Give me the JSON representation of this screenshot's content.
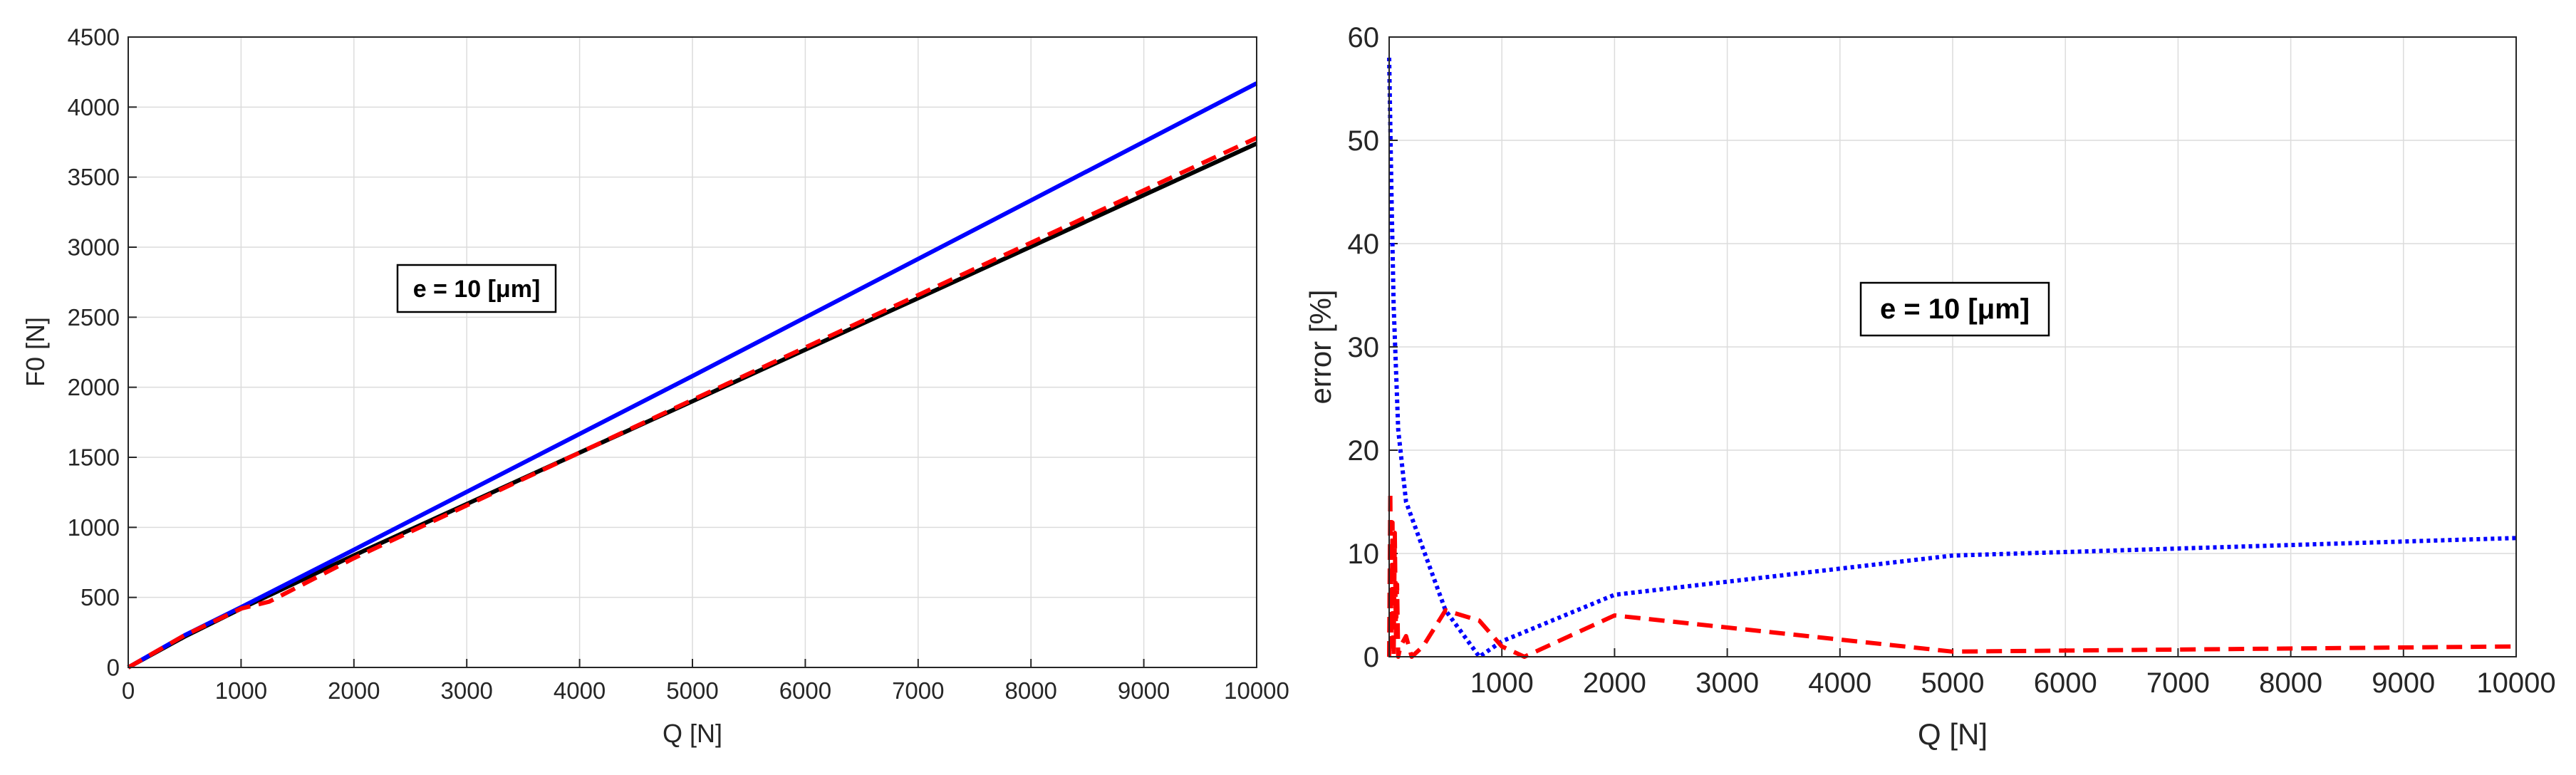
{
  "chart_data": [
    {
      "type": "line",
      "title": "",
      "xlabel": "Q [N]",
      "ylabel": "F0 [N]",
      "xlim": [
        0,
        10000
      ],
      "ylim": [
        0,
        4500
      ],
      "xticks": [
        0,
        1000,
        2000,
        3000,
        4000,
        5000,
        6000,
        7000,
        8000,
        9000,
        10000
      ],
      "yticks": [
        0,
        500,
        1000,
        1500,
        2000,
        2500,
        3000,
        3500,
        4000,
        4500
      ],
      "grid": true,
      "annotation": "e = 10 [μm]",
      "series": [
        {
          "color": "#000000",
          "style": "solid",
          "x": [
            0,
            500,
            1000,
            2000,
            5000,
            10000
          ],
          "y": [
            0,
            220,
            420,
            800,
            1900,
            3740
          ]
        },
        {
          "color": "#0000ff",
          "style": "solid",
          "x": [
            0,
            500,
            1000,
            2000,
            5000,
            10000
          ],
          "y": [
            0,
            230,
            430,
            840,
            2080,
            4170
          ]
        },
        {
          "color": "#ff0000",
          "style": "dashed",
          "x": [
            0,
            500,
            1000,
            1250,
            2000,
            5000,
            10000
          ],
          "y": [
            0,
            230,
            420,
            470,
            780,
            1910,
            3780
          ]
        }
      ]
    },
    {
      "type": "line",
      "title": "",
      "xlabel": "Q [N]",
      "ylabel": "error [%]",
      "xlim": [
        0,
        10000
      ],
      "ylim": [
        0,
        60
      ],
      "xticks": [
        1000,
        2000,
        3000,
        4000,
        5000,
        6000,
        7000,
        8000,
        9000,
        10000
      ],
      "yticks": [
        0,
        10,
        20,
        30,
        40,
        50,
        60
      ],
      "grid": true,
      "annotation": "e = 10 [μm]",
      "series": [
        {
          "color": "#0000ff",
          "style": "dotted",
          "x": [
            0,
            20,
            40,
            80,
            150,
            250,
            500,
            800,
            1000,
            2000,
            5000,
            10000
          ],
          "y": [
            58,
            45,
            34,
            22,
            15,
            12,
            4.5,
            0,
            1.5,
            6,
            9.8,
            11.5
          ]
        },
        {
          "color": "#ff0000",
          "style": "dashed",
          "x": [
            0,
            10,
            20,
            30,
            40,
            50,
            60,
            70,
            80,
            100,
            150,
            200,
            300,
            500,
            800,
            1000,
            1200,
            2000,
            5000,
            10000
          ],
          "y": [
            0,
            16,
            1,
            13,
            0,
            12,
            2,
            7,
            0,
            1,
            2,
            0,
            1,
            4.5,
            3.5,
            1,
            0,
            4,
            0.5,
            1
          ]
        }
      ]
    }
  ]
}
